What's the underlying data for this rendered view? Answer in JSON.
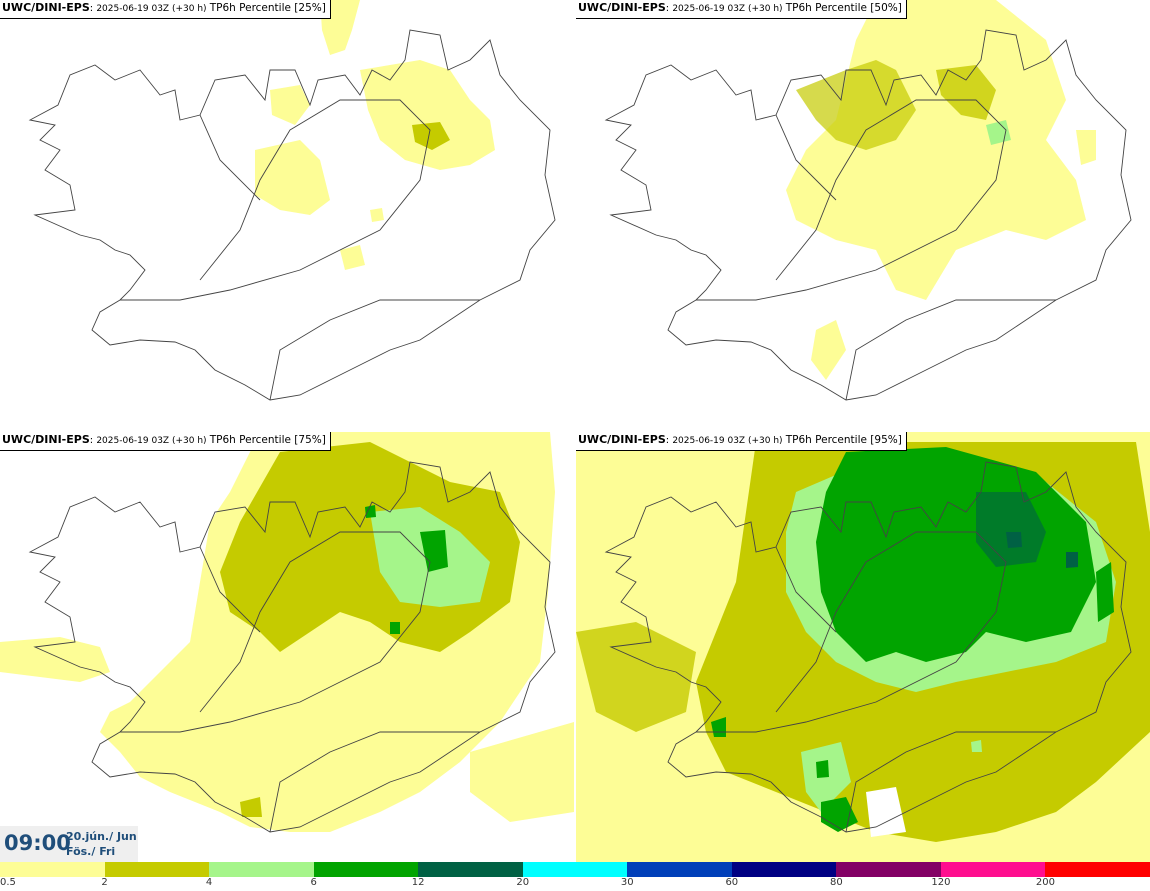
{
  "panels": [
    {
      "model": "UWC/DINI-EPS",
      "info": "2025-06-19 03Z (+30 h)",
      "label": "TP6h Percentile [25%]"
    },
    {
      "model": "UWC/DINI-EPS",
      "info": "2025-06-19 03Z (+30 h)",
      "label": "TP6h Percentile [50%]"
    },
    {
      "model": "UWC/DINI-EPS",
      "info": "2025-06-19 03Z (+30 h)",
      "label": "TP6h Percentile [75%]"
    },
    {
      "model": "UWC/DINI-EPS",
      "info": "2025-06-19 03Z (+30 h)",
      "label": "TP6h Percentile [95%]"
    }
  ],
  "timebox": {
    "time": "09:00",
    "date_line1": "20.jún./ Jun",
    "date_line2": "Fös./ Fri"
  },
  "colorbar": {
    "colors": [
      "#fdfd96",
      "#c5cb00",
      "#a5f58a",
      "#01a400",
      "#006144",
      "#00ffff",
      "#003fb9",
      "#000083",
      "#830065",
      "#ff0e8f",
      "#ff0000"
    ],
    "ticks": [
      "0.5",
      "2",
      "4",
      "6",
      "12",
      "20",
      "30",
      "60",
      "80",
      "120",
      "200"
    ]
  },
  "colors": {
    "light_yellow": "#fdfd96",
    "olive": "#c5cb00",
    "light_green": "#a5f58a",
    "green": "#01a400",
    "dark_green": "#006144",
    "coast": "#444444"
  }
}
